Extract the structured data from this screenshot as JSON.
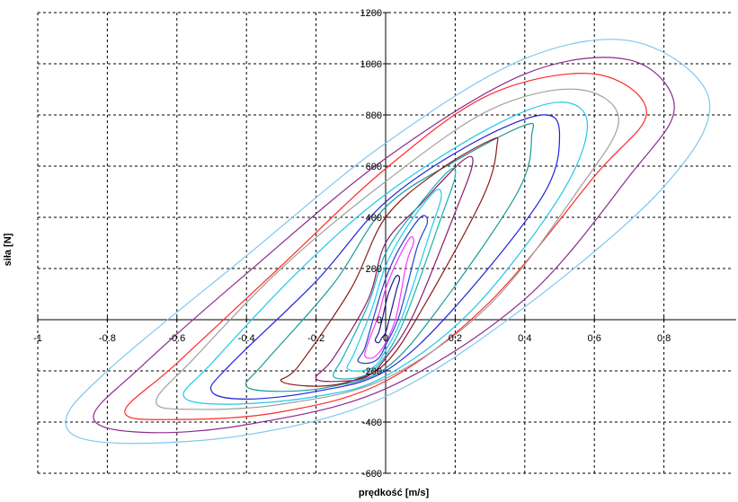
{
  "chart_data": {
    "type": "line",
    "title": "",
    "xlabel": "prędkość [m/s]",
    "ylabel": "siła [N]",
    "xlim": [
      -1,
      1
    ],
    "ylim": [
      -600,
      1200
    ],
    "grid": true,
    "x_ticks": [
      -1,
      -0.8,
      -0.6,
      -0.4,
      -0.2,
      0,
      0.2,
      0.4,
      0.6,
      0.8
    ],
    "x_tick_labels": [
      "-1",
      "-0.8",
      "-0.6",
      "-0.4",
      "-0.2",
      "0",
      "0.2",
      "0.4",
      "0.6",
      "0.8"
    ],
    "y_ticks": [
      -600,
      -400,
      -200,
      0,
      200,
      400,
      600,
      800,
      1000,
      1200
    ],
    "y_tick_labels": [
      "-600",
      "-400",
      "-200",
      "0",
      "200",
      "400",
      "600",
      "800",
      "1000",
      "1200"
    ],
    "series": [
      {
        "color": "#7ec8ee",
        "x": [
          0.93,
          0.72,
          0.4,
          0.0,
          -0.4,
          -0.8,
          -0.92,
          -0.8,
          -0.4,
          0.0,
          0.4,
          0.8,
          0.93
        ],
        "y": [
          860,
          1085,
          1020,
          690,
          250,
          -200,
          -400,
          -480,
          -450,
          -300,
          50,
          520,
          860
        ]
      },
      {
        "color": "#8b2c8b",
        "x": [
          0.83,
          0.7,
          0.4,
          0.0,
          -0.4,
          -0.7,
          -0.84,
          -0.7,
          -0.4,
          0.0,
          0.4,
          0.7,
          0.83
        ],
        "y": [
          830,
          1015,
          960,
          630,
          180,
          -180,
          -380,
          -440,
          -410,
          -270,
          80,
          560,
          830
        ]
      },
      {
        "color": "#ff2a2a",
        "x": [
          0.75,
          0.6,
          0.3,
          0.0,
          -0.3,
          -0.6,
          -0.75,
          -0.6,
          -0.3,
          0.0,
          0.3,
          0.6,
          0.75
        ],
        "y": [
          810,
          960,
          880,
          590,
          210,
          -170,
          -360,
          -390,
          -360,
          -240,
          70,
          560,
          810
        ]
      },
      {
        "color": "#a0a0a0",
        "x": [
          0.67,
          0.55,
          0.3,
          0.0,
          -0.3,
          -0.55,
          -0.66,
          -0.55,
          -0.3,
          0.0,
          0.3,
          0.55,
          0.67
        ],
        "y": [
          780,
          900,
          820,
          540,
          200,
          -150,
          -320,
          -350,
          -330,
          -230,
          60,
          500,
          780
        ]
      },
      {
        "color": "#22c8e8",
        "x": [
          0.58,
          0.5,
          0.3,
          0.0,
          -0.25,
          -0.5,
          -0.58,
          -0.45,
          -0.2,
          0.0,
          0.25,
          0.5,
          0.58
        ],
        "y": [
          760,
          850,
          750,
          490,
          190,
          -170,
          -300,
          -330,
          -300,
          -220,
          40,
          480,
          760
        ]
      },
      {
        "color": "#2222dd",
        "x": [
          0.5,
          0.45,
          0.25,
          0.0,
          -0.2,
          -0.45,
          -0.5,
          -0.4,
          -0.2,
          0.0,
          0.2,
          0.45,
          0.5
        ],
        "y": [
          720,
          800,
          690,
          460,
          150,
          -180,
          -280,
          -310,
          -280,
          -200,
          50,
          480,
          720
        ]
      },
      {
        "color": "#1a9a9a",
        "x": [
          0.42,
          0.4,
          0.2,
          0.0,
          -0.15,
          -0.35,
          -0.4,
          -0.3,
          -0.15,
          0.0,
          0.15,
          0.38,
          0.42
        ],
        "y": [
          720,
          760,
          620,
          440,
          140,
          -170,
          -260,
          -280,
          -260,
          -190,
          40,
          500,
          720
        ]
      },
      {
        "color": "#8b1a1a",
        "x": [
          0.32,
          0.3,
          0.15,
          0.0,
          -0.1,
          -0.25,
          -0.3,
          -0.2,
          -0.1,
          0.0,
          0.1,
          0.28,
          0.32
        ],
        "y": [
          680,
          700,
          580,
          400,
          120,
          -180,
          -240,
          -260,
          -240,
          -170,
          30,
          480,
          680
        ]
      },
      {
        "color": "#8b1a6b",
        "x": [
          0.25,
          0.22,
          0.1,
          0.0,
          -0.05,
          -0.15,
          -0.2,
          -0.12,
          -0.05,
          0.0,
          0.08,
          0.2,
          0.25
        ],
        "y": [
          610,
          620,
          450,
          300,
          80,
          -150,
          -230,
          -240,
          -220,
          -150,
          20,
          420,
          610
        ]
      },
      {
        "color": "#1ab0b0",
        "x": [
          0.2,
          0.18,
          0.08,
          0.0,
          -0.05,
          -0.12,
          -0.15,
          -0.1,
          -0.05,
          0.0,
          0.06,
          0.16,
          0.2
        ],
        "y": [
          560,
          580,
          420,
          260,
          60,
          -140,
          -220,
          -230,
          -210,
          -140,
          20,
          400,
          560
        ]
      },
      {
        "color": "#22ccee",
        "x": [
          0.16,
          0.14,
          0.06,
          0.0,
          -0.04,
          -0.09,
          -0.11,
          -0.07,
          -0.03,
          0.0,
          0.05,
          0.13,
          0.16
        ],
        "y": [
          480,
          500,
          360,
          210,
          40,
          -130,
          -190,
          -200,
          -180,
          -120,
          20,
          350,
          480
        ]
      },
      {
        "color": "#2244cc",
        "x": [
          0.12,
          0.1,
          0.04,
          0.0,
          -0.03,
          -0.06,
          -0.08,
          -0.05,
          -0.02,
          0.0,
          0.04,
          0.09,
          0.12
        ],
        "y": [
          380,
          400,
          280,
          160,
          30,
          -110,
          -160,
          -170,
          -150,
          -100,
          20,
          280,
          380
        ]
      },
      {
        "color": "#ff33ff",
        "x": [
          0.08,
          0.07,
          0.03,
          0.0,
          -0.02,
          -0.05,
          -0.06,
          -0.04,
          -0.02,
          0.0,
          0.03,
          0.06,
          0.08
        ],
        "y": [
          300,
          320,
          220,
          120,
          20,
          -90,
          -140,
          -150,
          -130,
          -90,
          10,
          220,
          300
        ]
      },
      {
        "color": "#1a1a8b",
        "x": [
          0.04,
          0.03,
          0.01,
          0.0,
          -0.01,
          -0.02,
          -0.03,
          -0.02,
          -0.01,
          0.0,
          0.01,
          0.03,
          0.04
        ],
        "y": [
          160,
          170,
          110,
          60,
          0,
          -50,
          -80,
          -90,
          -70,
          -50,
          0,
          110,
          160
        ]
      }
    ]
  }
}
